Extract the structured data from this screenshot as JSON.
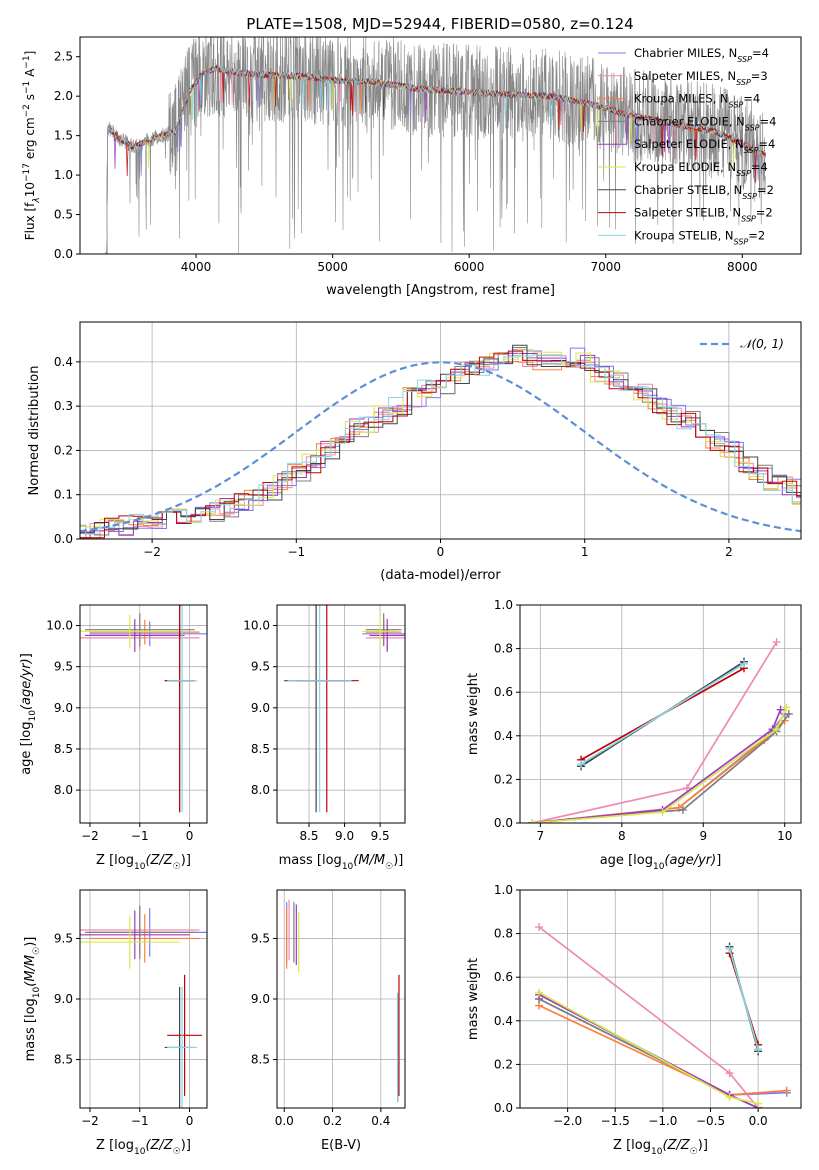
{
  "figure_title": "PLATE=1508, MJD=52944, FIBERID=0580, z=0.124",
  "colors": {
    "Chabrier MILES": "#7b7bf0",
    "Salpeter MILES": "#f08ab0",
    "Kroupa MILES": "#ff7f3a",
    "Chabrier ELODIE": "#7f7f7f",
    "Salpeter ELODIE": "#9a3bc0",
    "Kroupa ELODIE": "#d8e84a",
    "Chabrier STELIB": "#444444",
    "Salpeter STELIB": "#c00000",
    "Kroupa STELIB": "#86d6e8",
    "gauss": "#5b8fd8"
  },
  "chart_data": [
    {
      "type": "line",
      "panel": "spectrum",
      "title": "PLATE=1508, MJD=52944, FIBERID=0580, z=0.124",
      "xlabel": "wavelength [Angstrom, rest frame]",
      "ylabel": "Flux [f_λ10^-17 erg cm^-2 s^-1 A^-1]",
      "xlim": [
        3150,
        8430
      ],
      "ylim": [
        0,
        2.75
      ],
      "xticks": [
        "4000",
        "5000",
        "6000",
        "7000",
        "8000"
      ],
      "yticks": [
        "0.0",
        "0.5",
        "1.0",
        "1.5",
        "2.0",
        "2.5"
      ],
      "legend_position": "top-right",
      "legend": [
        "Chabrier MILES, N_SSP=4",
        "Salpeter MILES, N_SSP=3",
        "Kroupa MILES, N_SSP=4",
        "Chabrier ELODIE, N_SSP=4",
        "Salpeter ELODIE, N_SSP=4",
        "Kroupa ELODIE, N_SSP=4",
        "Chabrier STELIB, N_SSP=2",
        "Salpeter STELIB, N_SSP=2",
        "Kroupa STELIB, N_SSP=2"
      ],
      "model_continuum": {
        "x": [
          3350,
          3450,
          3550,
          3650,
          3750,
          3850,
          3950,
          4050,
          4150,
          4300,
          4500,
          4800,
          5000,
          5300,
          5600,
          6000,
          6300,
          6600,
          6900,
          7200,
          7500,
          7800,
          8000,
          8170
        ],
        "y": [
          1.6,
          1.45,
          1.35,
          1.45,
          1.5,
          1.55,
          2.05,
          2.3,
          2.35,
          2.3,
          2.27,
          2.25,
          2.2,
          2.18,
          2.1,
          2.05,
          2.02,
          2.0,
          1.9,
          1.75,
          1.65,
          1.55,
          1.4,
          1.25
        ]
      },
      "grid": false
    },
    {
      "type": "line",
      "panel": "residual_histogram",
      "xlabel": "(data-model)/error",
      "ylabel": "Normed distribution",
      "xlim": [
        -2.5,
        2.5
      ],
      "ylim": [
        0,
        0.49
      ],
      "xticks": [
        "−2",
        "−1",
        "0",
        "1",
        "2"
      ],
      "yticks": [
        "0.0",
        "0.1",
        "0.2",
        "0.3",
        "0.4"
      ],
      "legend_position": "top-right",
      "legend": [
        "𝒩(0, 1)"
      ],
      "bin_width": 0.1,
      "bin_start": -2.5,
      "histogram_mean": [
        0.015,
        0.02,
        0.03,
        0.03,
        0.04,
        0.045,
        0.05,
        0.05,
        0.055,
        0.06,
        0.07,
        0.08,
        0.09,
        0.11,
        0.13,
        0.15,
        0.17,
        0.2,
        0.22,
        0.25,
        0.26,
        0.28,
        0.3,
        0.32,
        0.34,
        0.35,
        0.37,
        0.38,
        0.39,
        0.4,
        0.42,
        0.41,
        0.4,
        0.4,
        0.41,
        0.4,
        0.37,
        0.36,
        0.35,
        0.33,
        0.3,
        0.28,
        0.27,
        0.25,
        0.22,
        0.2,
        0.17,
        0.15,
        0.13,
        0.12,
        0.1,
        0.09,
        0.08,
        0.07,
        0.06,
        0.05,
        0.05,
        0.04,
        0.035,
        0.03,
        0.03,
        0.025,
        0.02,
        0.02,
        0.015,
        0.015,
        0.01,
        0.01,
        0.01,
        0.01
      ],
      "grid": true
    },
    {
      "type": "scatter",
      "panel": "age_vs_Z",
      "xlabel": "Z [log10(Z/Z☉)]",
      "ylabel": "age [log10(age/yr)]",
      "xlim": [
        -2.2,
        0.35
      ],
      "ylim": [
        7.6,
        10.25
      ],
      "xticks": [
        "−2",
        "−1",
        "0"
      ],
      "yticks": [
        "8.0",
        "8.5",
        "9.0",
        "9.5",
        "10.0"
      ],
      "points": [
        {
          "series": "Chabrier MILES",
          "x": -0.8,
          "y": 9.9,
          "xerr": 1.2,
          "yerr": 0.15
        },
        {
          "series": "Salpeter MILES",
          "x": -1.0,
          "y": 9.85,
          "xerr": 1.2,
          "yerr": 0.15
        },
        {
          "series": "Kroupa MILES",
          "x": -0.9,
          "y": 9.92,
          "xerr": 1.1,
          "yerr": 0.15
        },
        {
          "series": "Chabrier ELODIE",
          "x": -1.0,
          "y": 9.95,
          "xerr": 1.1,
          "yerr": 0.2
        },
        {
          "series": "Salpeter ELODIE",
          "x": -1.1,
          "y": 9.88,
          "xerr": 1.0,
          "yerr": 0.2
        },
        {
          "series": "Kroupa ELODIE",
          "x": -1.2,
          "y": 9.93,
          "xerr": 1.0,
          "yerr": 0.2
        },
        {
          "series": "Chabrier STELIB",
          "x": -0.2,
          "y": 9.33,
          "xerr": 0.3,
          "yerr": 1.6
        },
        {
          "series": "Salpeter STELIB",
          "x": -0.2,
          "y": 9.33,
          "xerr": 0.3,
          "yerr": 1.6
        },
        {
          "series": "Kroupa STELIB",
          "x": -0.15,
          "y": 9.33,
          "xerr": 0.3,
          "yerr": 1.6
        }
      ],
      "grid": true
    },
    {
      "type": "scatter",
      "panel": "age_vs_mass",
      "xlabel": "mass [log10(M/M☉)]",
      "ylabel": "",
      "xlim": [
        8.05,
        9.85
      ],
      "ylim": [
        7.6,
        10.25
      ],
      "xticks": [
        "8.5",
        "9.0",
        "9.5"
      ],
      "yticks": [
        "8.0",
        "8.5",
        "9.0",
        "9.5",
        "10.0"
      ],
      "points": [
        {
          "series": "Chabrier MILES",
          "x": 9.55,
          "y": 9.9,
          "xerr": 0.3,
          "yerr": 0.15
        },
        {
          "series": "Salpeter MILES",
          "x": 9.6,
          "y": 9.85,
          "xerr": 0.3,
          "yerr": 0.15
        },
        {
          "series": "Kroupa MILES",
          "x": 9.55,
          "y": 9.92,
          "xerr": 0.25,
          "yerr": 0.15
        },
        {
          "series": "Chabrier ELODIE",
          "x": 9.55,
          "y": 9.95,
          "xerr": 0.25,
          "yerr": 0.2
        },
        {
          "series": "Salpeter ELODIE",
          "x": 9.6,
          "y": 9.88,
          "xerr": 0.25,
          "yerr": 0.2
        },
        {
          "series": "Kroupa ELODIE",
          "x": 9.5,
          "y": 9.93,
          "xerr": 0.25,
          "yerr": 0.2
        },
        {
          "series": "Chabrier STELIB",
          "x": 8.6,
          "y": 9.33,
          "xerr": 0.45,
          "yerr": 1.6
        },
        {
          "series": "Salpeter STELIB",
          "x": 8.75,
          "y": 9.33,
          "xerr": 0.45,
          "yerr": 1.6
        },
        {
          "series": "Kroupa STELIB",
          "x": 8.65,
          "y": 9.33,
          "xerr": 0.45,
          "yerr": 1.6
        }
      ],
      "grid": true
    },
    {
      "type": "line",
      "panel": "weight_vs_age",
      "xlabel": "age [log10(age/yr)]",
      "ylabel": "mass weight",
      "xlim": [
        6.75,
        10.2
      ],
      "ylim": [
        0,
        1.0
      ],
      "xticks": [
        "7",
        "8",
        "9",
        "10"
      ],
      "yticks": [
        "0.0",
        "0.2",
        "0.4",
        "0.6",
        "0.8",
        "1.0"
      ],
      "series": [
        {
          "name": "Chabrier MILES",
          "x": [
            6.9,
            8.7,
            9.8,
            10.0
          ],
          "y": [
            0.0,
            0.07,
            0.4,
            0.5
          ]
        },
        {
          "name": "Salpeter MILES",
          "x": [
            6.9,
            8.8,
            9.9
          ],
          "y": [
            0.0,
            0.16,
            0.83
          ]
        },
        {
          "name": "Kroupa MILES",
          "x": [
            6.9,
            8.7,
            9.75,
            10.0
          ],
          "y": [
            0.0,
            0.07,
            0.38,
            0.47
          ]
        },
        {
          "name": "Chabrier ELODIE",
          "x": [
            6.9,
            8.75,
            9.9,
            10.05
          ],
          "y": [
            0.0,
            0.06,
            0.42,
            0.5
          ]
        },
        {
          "name": "Salpeter ELODIE",
          "x": [
            6.9,
            8.5,
            9.85,
            9.95
          ],
          "y": [
            0.0,
            0.06,
            0.43,
            0.52
          ]
        },
        {
          "name": "Kroupa ELODIE",
          "x": [
            6.9,
            8.5,
            9.9,
            10.02
          ],
          "y": [
            0.0,
            0.05,
            0.43,
            0.53
          ]
        },
        {
          "name": "Chabrier STELIB",
          "x": [
            7.5,
            9.5
          ],
          "y": [
            0.26,
            0.74
          ]
        },
        {
          "name": "Salpeter STELIB",
          "x": [
            7.5,
            9.5
          ],
          "y": [
            0.29,
            0.71
          ]
        },
        {
          "name": "Kroupa STELIB",
          "x": [
            7.5,
            9.5
          ],
          "y": [
            0.27,
            0.73
          ]
        }
      ],
      "grid": true
    },
    {
      "type": "scatter",
      "panel": "mass_vs_Z",
      "xlabel": "Z [log10(Z/Z☉)]",
      "ylabel": "mass [log10(M/M☉)]",
      "xlim": [
        -2.2,
        0.35
      ],
      "ylim": [
        8.1,
        9.9
      ],
      "xticks": [
        "−2",
        "−1",
        "0"
      ],
      "yticks": [
        "8.5",
        "9.0",
        "9.5"
      ],
      "points": [
        {
          "series": "Chabrier MILES",
          "x": -0.8,
          "y": 9.55,
          "xerr": 1.2,
          "yerr": 0.2
        },
        {
          "series": "Salpeter MILES",
          "x": -1.0,
          "y": 9.57,
          "xerr": 1.2,
          "yerr": 0.2
        },
        {
          "series": "Kroupa MILES",
          "x": -0.9,
          "y": 9.5,
          "xerr": 1.1,
          "yerr": 0.2
        },
        {
          "series": "Chabrier ELODIE",
          "x": -1.0,
          "y": 9.55,
          "xerr": 1.1,
          "yerr": 0.22
        },
        {
          "series": "Salpeter ELODIE",
          "x": -1.1,
          "y": 9.53,
          "xerr": 1.1,
          "yerr": 0.2
        },
        {
          "series": "Kroupa ELODIE",
          "x": -1.2,
          "y": 9.47,
          "xerr": 1.0,
          "yerr": 0.22
        },
        {
          "series": "Chabrier STELIB",
          "x": -0.2,
          "y": 8.6,
          "xerr": 0.3,
          "yerr": 0.5
        },
        {
          "series": "Salpeter STELIB",
          "x": -0.1,
          "y": 8.7,
          "xerr": 0.35,
          "yerr": 0.5
        },
        {
          "series": "Kroupa STELIB",
          "x": -0.15,
          "y": 8.6,
          "xerr": 0.3,
          "yerr": 0.5
        }
      ],
      "grid": true
    },
    {
      "type": "scatter",
      "panel": "mass_vs_EBV",
      "xlabel": "E(B-V)",
      "ylabel": "",
      "xlim": [
        -0.03,
        0.5
      ],
      "ylim": [
        8.1,
        9.9
      ],
      "xticks": [
        "0.0",
        "0.2",
        "0.4"
      ],
      "yticks": [
        "8.5",
        "9.0",
        "9.5"
      ],
      "points": [
        {
          "series": "Chabrier MILES",
          "x": 0.01,
          "y": 9.55,
          "xerr": 0,
          "yerr": 0.25
        },
        {
          "series": "Salpeter MILES",
          "x": 0.02,
          "y": 9.57,
          "xerr": 0,
          "yerr": 0.25
        },
        {
          "series": "Kroupa MILES",
          "x": 0.01,
          "y": 9.5,
          "xerr": 0,
          "yerr": 0.25
        },
        {
          "series": "Chabrier ELODIE",
          "x": 0.04,
          "y": 9.55,
          "xerr": 0,
          "yerr": 0.25
        },
        {
          "series": "Salpeter ELODIE",
          "x": 0.05,
          "y": 9.53,
          "xerr": 0,
          "yerr": 0.25
        },
        {
          "series": "Kroupa ELODIE",
          "x": 0.06,
          "y": 9.47,
          "xerr": 0,
          "yerr": 0.25
        },
        {
          "series": "Chabrier STELIB",
          "x": 0.47,
          "y": 8.6,
          "xerr": 0,
          "yerr": 0.45
        },
        {
          "series": "Salpeter STELIB",
          "x": 0.475,
          "y": 8.7,
          "xerr": 0,
          "yerr": 0.5
        },
        {
          "series": "Kroupa STELIB",
          "x": 0.47,
          "y": 8.6,
          "xerr": 0,
          "yerr": 0.45
        }
      ],
      "grid": true
    },
    {
      "type": "line",
      "panel": "weight_vs_Z",
      "xlabel": "Z [log10(Z/Z☉)]",
      "ylabel": "mass weight",
      "xlim": [
        -2.5,
        0.45
      ],
      "ylim": [
        0,
        1.0
      ],
      "xticks": [
        "−2.0",
        "−1.5",
        "−1.0",
        "−0.5",
        "0.0"
      ],
      "yticks": [
        "0.0",
        "0.2",
        "0.4",
        "0.6",
        "0.8",
        "1.0"
      ],
      "series": [
        {
          "name": "Chabrier MILES",
          "x": [
            -2.3,
            -0.3,
            0.3
          ],
          "y": [
            0.5,
            0.06,
            0.07
          ]
        },
        {
          "name": "Salpeter MILES",
          "x": [
            -2.3,
            -0.3,
            0.0
          ],
          "y": [
            0.83,
            0.16,
            0.0
          ]
        },
        {
          "name": "Kroupa MILES",
          "x": [
            -2.3,
            -0.3,
            0.3
          ],
          "y": [
            0.47,
            0.06,
            0.08
          ]
        },
        {
          "name": "Chabrier ELODIE",
          "x": [
            -2.3,
            -0.3,
            0.0
          ],
          "y": [
            0.5,
            0.06,
            0.0
          ]
        },
        {
          "name": "Salpeter ELODIE",
          "x": [
            -2.3,
            -0.3,
            0.0
          ],
          "y": [
            0.52,
            0.06,
            0.0
          ]
        },
        {
          "name": "Kroupa ELODIE",
          "x": [
            -2.3,
            -0.3,
            0.0
          ],
          "y": [
            0.53,
            0.05,
            0.02
          ]
        },
        {
          "name": "Chabrier STELIB",
          "x": [
            -0.3,
            0.0
          ],
          "y": [
            0.74,
            0.26
          ]
        },
        {
          "name": "Salpeter STELIB",
          "x": [
            -0.3,
            0.0
          ],
          "y": [
            0.71,
            0.29
          ]
        },
        {
          "name": "Kroupa STELIB",
          "x": [
            -0.3,
            0.0
          ],
          "y": [
            0.73,
            0.27
          ]
        }
      ],
      "grid": true
    }
  ]
}
